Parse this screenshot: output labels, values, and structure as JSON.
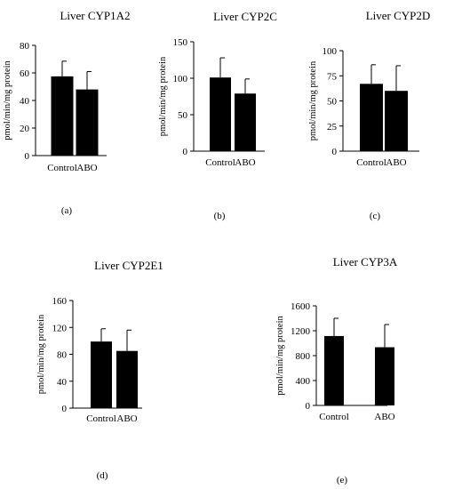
{
  "chart_data": [
    {
      "type": "bar",
      "title": "Liver CYP1A2",
      "ylabel": "pmol/min/mg protein",
      "categories": [
        "Control",
        "ABO"
      ],
      "values": [
        57.5,
        48
      ],
      "errors": [
        11,
        13
      ],
      "ylim": [
        0,
        80
      ],
      "yticks": [
        "0",
        "20",
        "40",
        "60",
        "80"
      ],
      "panel_label": "(a)"
    },
    {
      "type": "bar",
      "title": "Liver CYP2C",
      "ylabel": "pmol/min/mg protein",
      "categories": [
        "Control",
        "ABO"
      ],
      "values": [
        101,
        79
      ],
      "errors": [
        27,
        20
      ],
      "ylim": [
        0,
        150
      ],
      "yticks": [
        "0",
        "50",
        "100",
        "150"
      ],
      "panel_label": "(b)"
    },
    {
      "type": "bar",
      "title": "Liver CYP2D",
      "ylabel": "pmol/min/mg protein",
      "categories": [
        "Control",
        "ABO"
      ],
      "values": [
        67,
        60
      ],
      "errors": [
        19,
        25
      ],
      "ylim": [
        0,
        100
      ],
      "yticks": [
        "0",
        "25",
        "50",
        "75",
        "100"
      ],
      "panel_label": "(c)"
    },
    {
      "type": "bar",
      "title": "Liver CYP2E1",
      "ylabel": "pmol/min/mg protein",
      "categories": [
        "Control",
        "ABO"
      ],
      "values": [
        99,
        85
      ],
      "errors": [
        19,
        31
      ],
      "ylim": [
        0,
        160
      ],
      "yticks": [
        "0",
        "40",
        "80",
        "120",
        "160"
      ],
      "panel_label": "(d)"
    },
    {
      "type": "bar",
      "title": "Liver CYP3A",
      "ylabel": "pmol/min/mg protein",
      "categories": [
        "Control",
        "ABO"
      ],
      "values": [
        1115,
        935
      ],
      "errors": [
        285,
        365
      ],
      "ylim": [
        0,
        1600
      ],
      "yticks": [
        "0",
        "400",
        "800",
        "1200",
        "1600"
      ],
      "panel_label": "(e)"
    }
  ]
}
